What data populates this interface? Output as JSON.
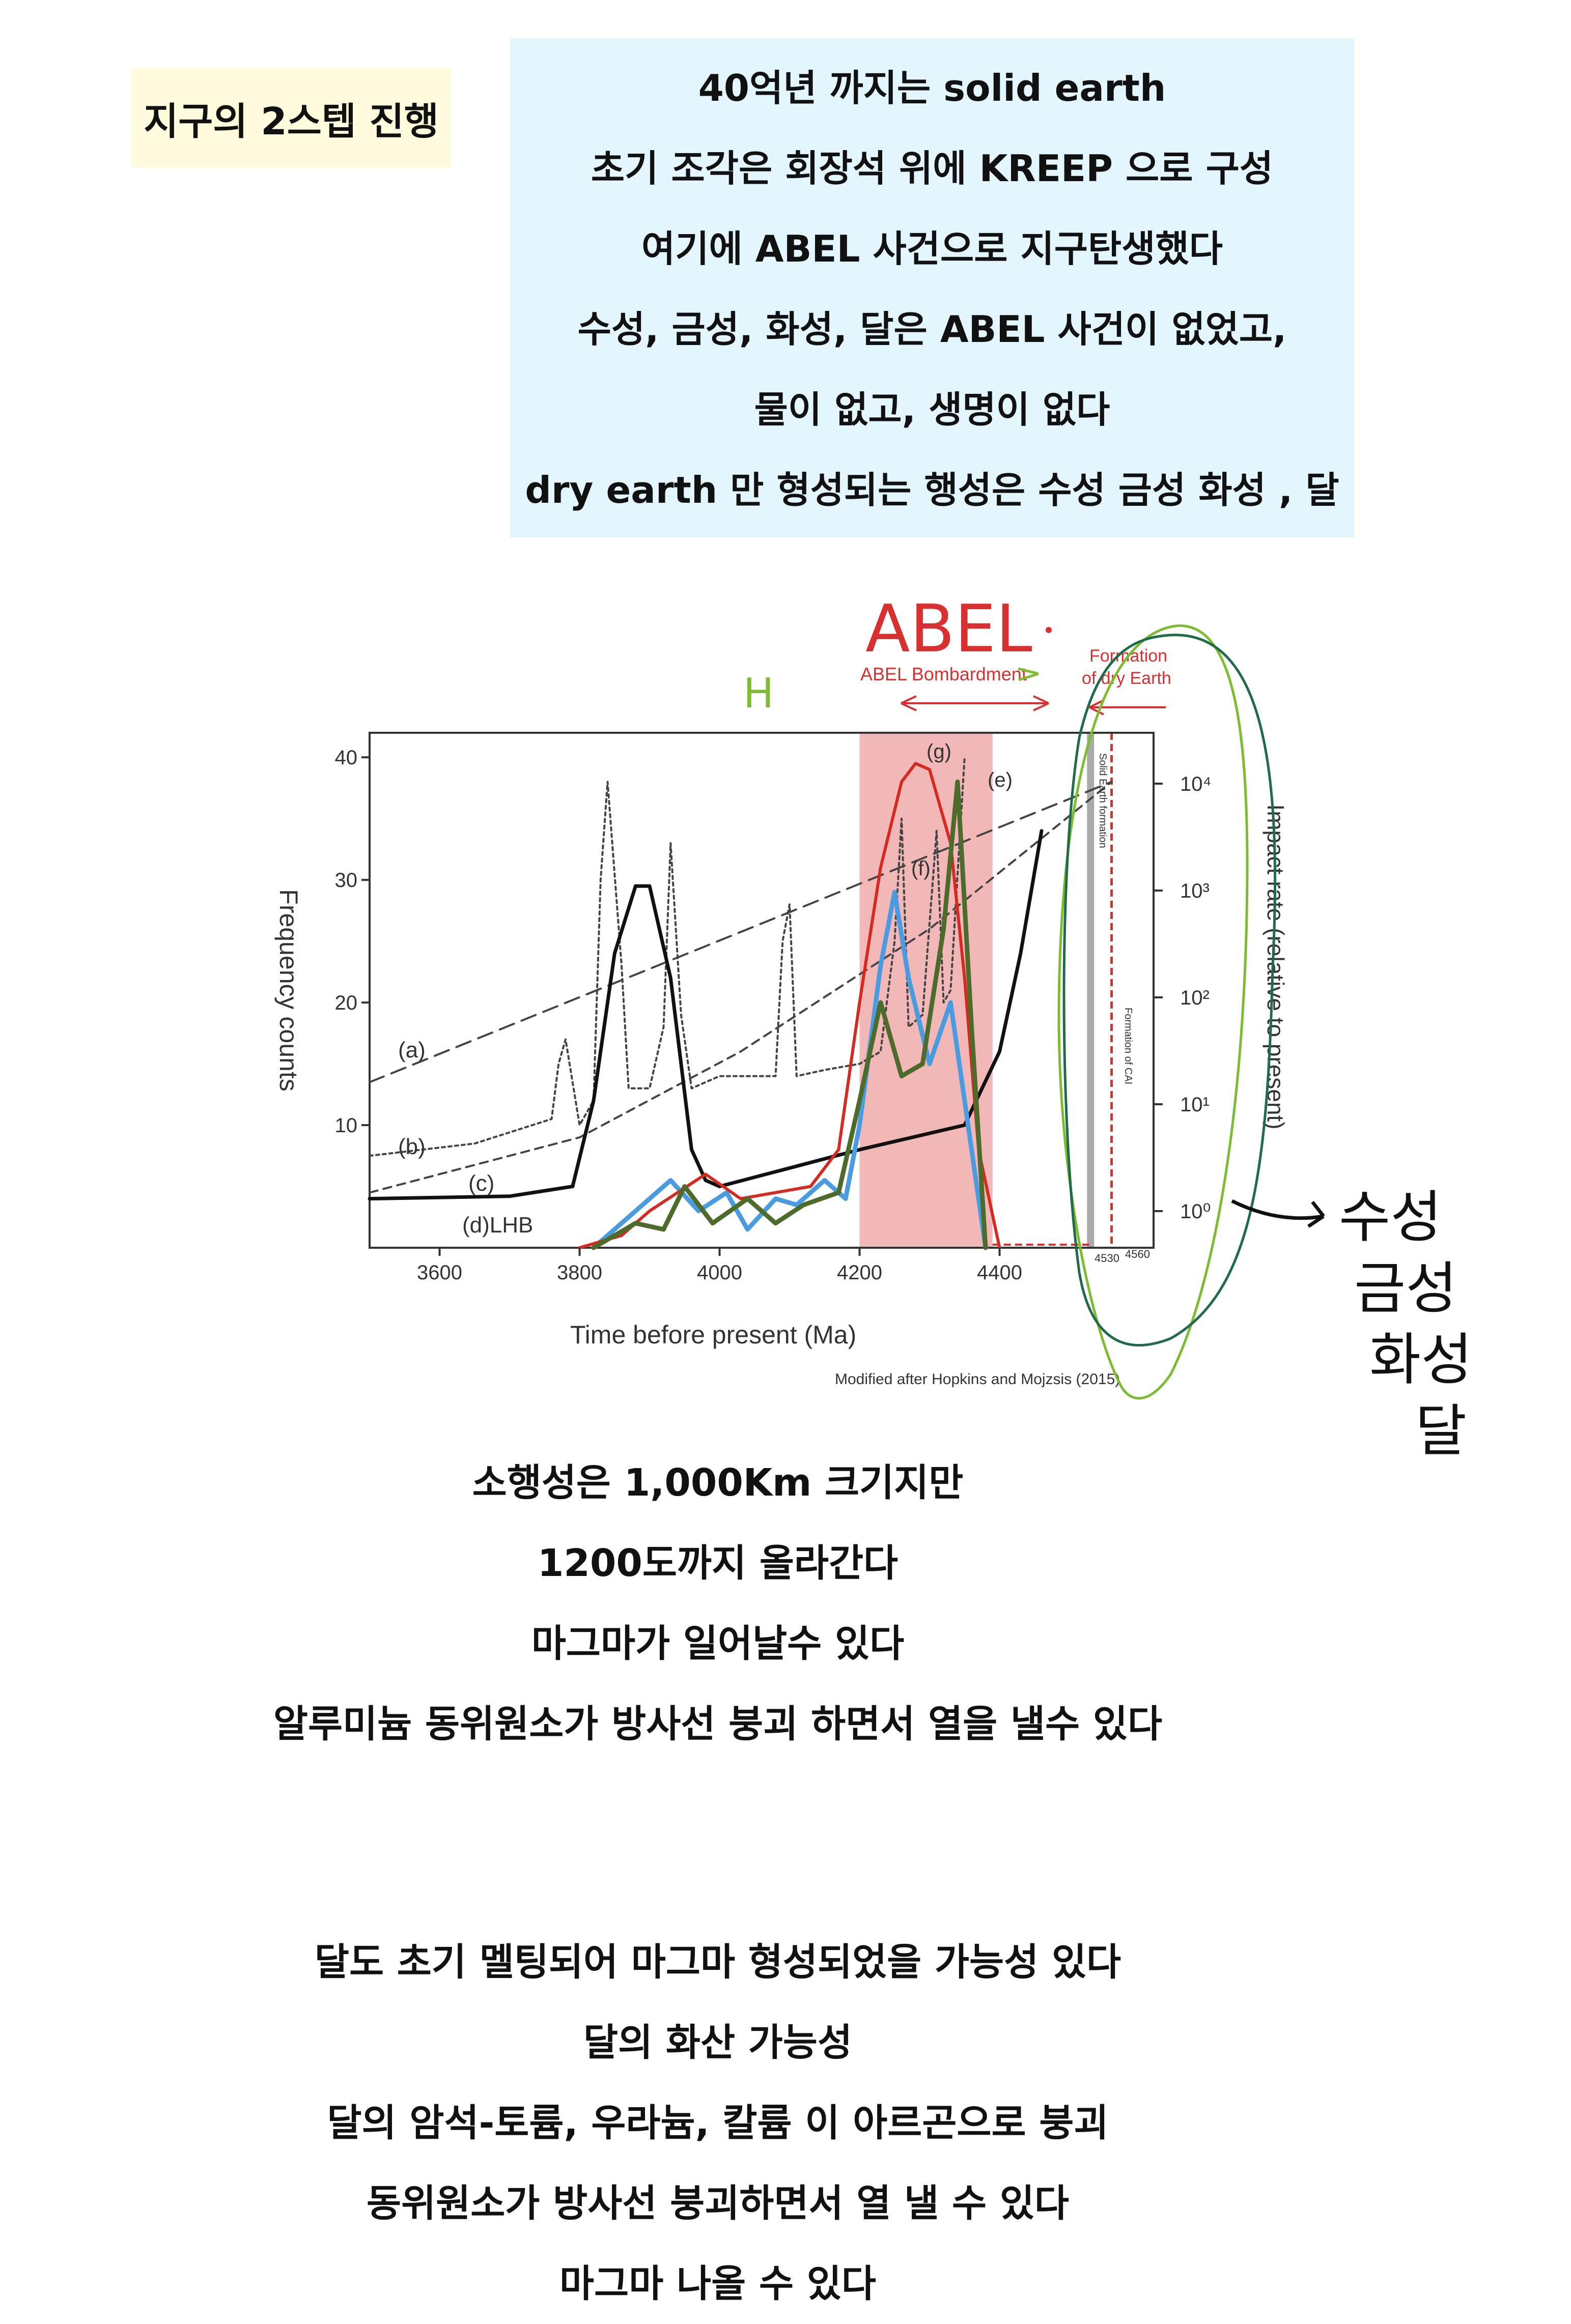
{
  "tag": {
    "label": "지구의 2스텝 진행"
  },
  "summary": {
    "lines": [
      "40억년 까지는 solid earth",
      "초기 조각은 회장석 위에 KREEP 으로 구성",
      "여기에 ABEL 사건으로 지구탄생했다",
      "수성, 금성, 화성, 달은 ABEL 사건이 없었고,",
      "물이 없고, 생명이 없다",
      "dry earth 만 형성되는 행성은 수성 금성 화성 , 달"
    ]
  },
  "figure": {
    "x_axis_label": "Time before present (Ma)",
    "y_axis_label": "Frequency counts",
    "right_axis_label": "Impact rate (relative to present)",
    "x_ticks": [
      "3600",
      "3800",
      "4000",
      "4200",
      "4400"
    ],
    "y_ticks": [
      "10",
      "20",
      "30",
      "40"
    ],
    "right_ticks": [
      "10⁴",
      "10³",
      "10²",
      "10¹",
      "10⁰"
    ],
    "curve_labels": [
      "(a)",
      "(b)",
      "(c)",
      "(d)LHB",
      "(f)",
      "(g)",
      "(e)"
    ],
    "band_label": "ABEL Bombardment",
    "formation_label_1": "Formation",
    "formation_label_2": "of dry Earth",
    "vertical_label_1": "Solid Earth formation",
    "vertical_label_2": "Formation of CAI",
    "small_tick_1": "4530",
    "small_tick_2": "4560",
    "credit": "Modified after Hopkins and Mojzsis (2015)",
    "handwritten_abel": "ABEL",
    "handwritten_h": "H",
    "handwritten_planets": [
      "수성",
      "금성",
      "화성",
      "달"
    ],
    "colors": {
      "band": "#f2b8b8",
      "red_curve": "#d42a20",
      "blue_curve": "#4a9be0",
      "green_curve": "#4d6b2a",
      "annotation_red": "#d83030",
      "annotation_green": "#7dbb32",
      "annotation_dark_green": "#1f6b4a"
    }
  },
  "chart_data": {
    "type": "line",
    "title": "",
    "xlabel": "Time before present (Ma)",
    "ylabel": "Frequency counts",
    "y2label": "Impact rate (relative to present)",
    "xlim": [
      3500,
      4620
    ],
    "ylim": [
      0,
      42
    ],
    "series": [
      {
        "name": "(a)",
        "style": "dashed",
        "x": [
          3500,
          4560
        ],
        "y": [
          13.5,
          38.0
        ]
      },
      {
        "name": "(b)",
        "style": "dotted",
        "x": [
          3500,
          3650,
          3760,
          3770,
          3780,
          3800,
          3820,
          3830,
          3840,
          3860,
          3870,
          3880,
          3900,
          3920,
          3930,
          3945,
          3960,
          3980,
          4000,
          4080,
          4090,
          4100,
          4110,
          4150,
          4200,
          4230,
          4250,
          4260,
          4270,
          4290,
          4310,
          4320,
          4330,
          4350
        ],
        "y": [
          7.5,
          8.5,
          10.5,
          15,
          17,
          10,
          12,
          30,
          38,
          23,
          13,
          13,
          13,
          18,
          33,
          19,
          13,
          13.5,
          14,
          14,
          25,
          28,
          14,
          14.5,
          15,
          16,
          25,
          35,
          18,
          19,
          34,
          20,
          21,
          40
        ]
      },
      {
        "name": "(c)",
        "style": "dashed",
        "x": [
          3500,
          3800,
          4030,
          4300,
          4560
        ],
        "y": [
          4.5,
          9,
          16,
          26,
          38
        ]
      },
      {
        "name": "(d)LHB",
        "style": "solid",
        "x": [
          3500,
          3700,
          3790,
          3820,
          3850,
          3880,
          3900,
          3930,
          3960,
          3980,
          4000,
          4200,
          4350,
          4400,
          4430,
          4460
        ],
        "y": [
          4,
          4.2,
          5,
          12,
          24,
          29.5,
          29.5,
          22,
          8,
          5.5,
          5,
          8,
          10,
          16,
          24,
          34
        ]
      },
      {
        "name": "(f)",
        "style": "solid",
        "x": [
          3820,
          3880,
          3930,
          3970,
          4010,
          4040,
          4080,
          4110,
          4150,
          4180,
          4200,
          4230,
          4250,
          4270,
          4300,
          4330,
          4350,
          4380
        ],
        "y": [
          0,
          3,
          5.5,
          3,
          4.5,
          1.5,
          4,
          3.5,
          5.5,
          4,
          10,
          23,
          29,
          22,
          15,
          20,
          12,
          0
        ]
      },
      {
        "name": "(g)",
        "style": "solid",
        "x": [
          3800,
          3860,
          3900,
          3940,
          3980,
          4030,
          4080,
          4130,
          4170,
          4200,
          4230,
          4260,
          4280,
          4300,
          4330,
          4350,
          4370,
          4400
        ],
        "y": [
          0,
          1,
          3,
          4.5,
          6,
          4,
          4.5,
          5,
          8,
          20,
          31,
          38,
          39.5,
          39,
          33,
          22,
          8,
          0
        ]
      },
      {
        "name": "(e)",
        "style": "solid",
        "x": [
          3820,
          3880,
          3920,
          3950,
          3990,
          4040,
          4080,
          4120,
          4170,
          4200,
          4230,
          4260,
          4290,
          4320,
          4340,
          4360,
          4380
        ],
        "y": [
          0,
          2,
          1.5,
          5,
          2,
          4,
          2,
          3.5,
          4.5,
          12,
          20,
          14,
          15,
          26,
          38,
          18,
          0
        ]
      }
    ],
    "shaded_region": {
      "label": "ABEL Bombardment",
      "x": [
        4200,
        4390
      ]
    },
    "markers": [
      {
        "x": 4530,
        "label": "4530"
      },
      {
        "x": 4560,
        "label": "4560"
      }
    ],
    "right_axis_ticks": [
      "10⁴",
      "10³",
      "10²",
      "10¹",
      "10⁰"
    ],
    "grid": false
  },
  "notes": {
    "block1": [
      "소행성은 1,000Km 크기지만",
      "1200도까지 올라간다",
      "마그마가 일어날수 있다",
      "알루미늄 동위원소가 방사선 붕괴 하면서 열을 낼수 있다"
    ],
    "block2": [
      "달도 초기 멜팅되어 마그마 형성되었을 가능성 있다",
      "달의 화산 가능성",
      "달의 암석-토륨, 우라늄, 칼륨 이 아르곤으로 붕괴",
      "동위원소가 방사선 붕괴하면서 열 낼 수 있다",
      "마그마 나올 수 있다"
    ]
  }
}
